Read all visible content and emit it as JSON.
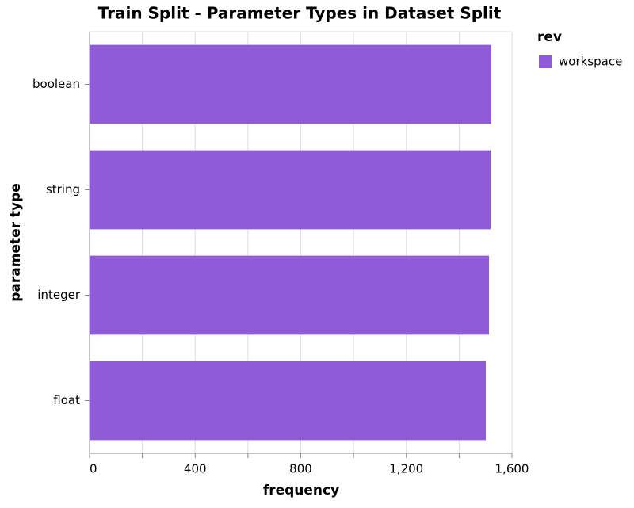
{
  "chart_data": {
    "type": "bar",
    "orientation": "horizontal",
    "title": "Train Split - Parameter Types in Dataset Split",
    "x_label": "frequency",
    "y_label": "parameter type",
    "categories": [
      "boolean",
      "string",
      "integer",
      "float"
    ],
    "series": [
      {
        "name": "workspace",
        "color": "#8f5bd6",
        "values": [
          1522,
          1519,
          1513,
          1501
        ]
      }
    ],
    "legend_title": "rev",
    "legend_position": "right",
    "xlim": [
      0,
      1600
    ],
    "xticks": [
      0,
      400,
      800,
      {
        "value": 1200,
        "label": "1,200"
      },
      {
        "value": 1600,
        "label": "1,600"
      }
    ],
    "grid": true
  }
}
